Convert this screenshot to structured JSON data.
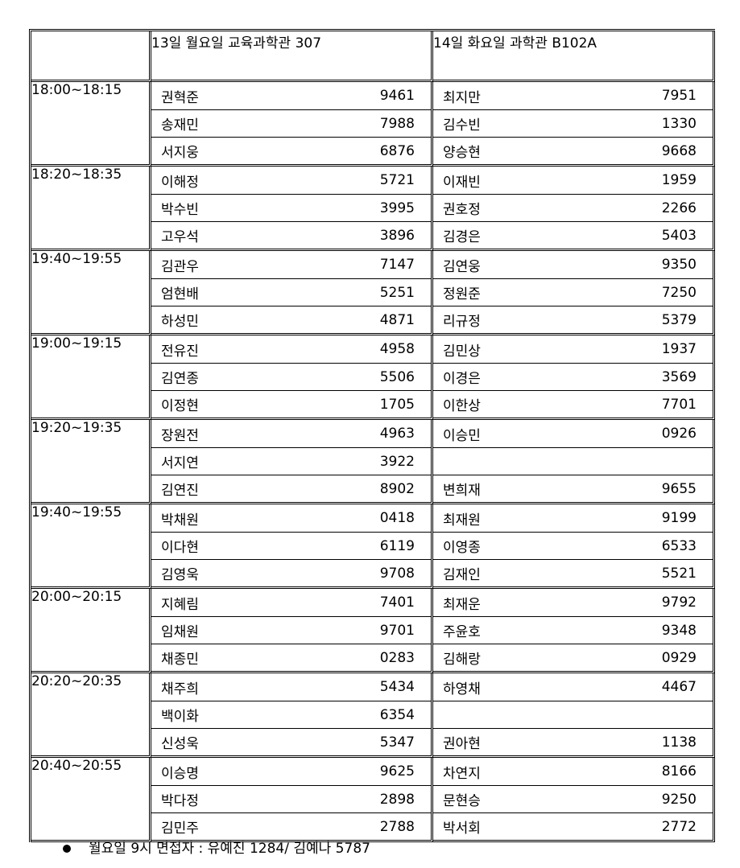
{
  "header": {
    "col1": "13일 월요일 교육과학관 307",
    "col2": "14일 화요일 과학관 B102A"
  },
  "blocks": [
    {
      "time": "18:00~18:15",
      "mon": [
        {
          "name": "권혁준",
          "num": "9461"
        },
        {
          "name": "송재민",
          "num": "7988"
        },
        {
          "name": "서지웅",
          "num": "6876"
        }
      ],
      "tue": [
        {
          "name": "최지만",
          "num": "7951"
        },
        {
          "name": "김수빈",
          "num": "1330"
        },
        {
          "name": "양승현",
          "num": "9668"
        }
      ]
    },
    {
      "time": "18:20~18:35",
      "mon": [
        {
          "name": "이해정",
          "num": "5721"
        },
        {
          "name": "박수빈",
          "num": "3995"
        },
        {
          "name": "고우석",
          "num": "3896"
        }
      ],
      "tue": [
        {
          "name": "이재빈",
          "num": "1959"
        },
        {
          "name": "권호정",
          "num": "2266"
        },
        {
          "name": "김경은",
          "num": "5403"
        }
      ]
    },
    {
      "time": "19:40~19:55",
      "mon": [
        {
          "name": "김관우",
          "num": "7147"
        },
        {
          "name": "엄현배",
          "num": "5251"
        },
        {
          "name": "하성민",
          "num": "4871"
        }
      ],
      "tue": [
        {
          "name": "김연웅",
          "num": "9350"
        },
        {
          "name": "정원준",
          "num": "7250"
        },
        {
          "name": "리규정",
          "num": "5379"
        }
      ]
    },
    {
      "time": "19:00~19:15",
      "mon": [
        {
          "name": "전유진",
          "num": "4958"
        },
        {
          "name": "김연종",
          "num": "5506"
        },
        {
          "name": "이정현",
          "num": "1705"
        }
      ],
      "tue": [
        {
          "name": "김민상",
          "num": "1937"
        },
        {
          "name": "이경은",
          "num": "3569"
        },
        {
          "name": "이한상",
          "num": "7701"
        }
      ]
    },
    {
      "time": "19:20~19:35",
      "mon": [
        {
          "name": "장원전",
          "num": "4963"
        },
        {
          "name": "서지연",
          "num": "3922"
        },
        {
          "name": "김연진",
          "num": "8902"
        }
      ],
      "tue": [
        {
          "name": "이승민",
          "num": "0926"
        },
        {
          "name": "",
          "num": ""
        },
        {
          "name": "변희재",
          "num": "9655"
        }
      ]
    },
    {
      "time": "19:40~19:55",
      "mon": [
        {
          "name": "박채원",
          "num": "0418"
        },
        {
          "name": "이다현",
          "num": "6119"
        },
        {
          "name": "김영욱",
          "num": "9708"
        }
      ],
      "tue": [
        {
          "name": "최재원",
          "num": "9199"
        },
        {
          "name": "이영종",
          "num": "6533"
        },
        {
          "name": "김재인",
          "num": "5521"
        }
      ]
    },
    {
      "time": "20:00~20:15",
      "mon": [
        {
          "name": "지혜림",
          "num": "7401"
        },
        {
          "name": "임채원",
          "num": "9701"
        },
        {
          "name": "채종민",
          "num": "0283"
        }
      ],
      "tue": [
        {
          "name": "최재운",
          "num": "9792"
        },
        {
          "name": "주윤호",
          "num": "9348"
        },
        {
          "name": "김해랑",
          "num": "0929"
        }
      ]
    },
    {
      "time": "20:20~20:35",
      "mon": [
        {
          "name": "채주희",
          "num": "5434"
        },
        {
          "name": "백이화",
          "num": "6354"
        },
        {
          "name": "신성욱",
          "num": "5347"
        }
      ],
      "tue": [
        {
          "name": "하영채",
          "num": "4467"
        },
        {
          "name": "",
          "num": ""
        },
        {
          "name": "권아현",
          "num": "1138"
        }
      ]
    },
    {
      "time": "20:40~20:55",
      "mon": [
        {
          "name": "이승명",
          "num": "9625"
        },
        {
          "name": "박다정",
          "num": "2898"
        },
        {
          "name": "김민주",
          "num": "2788"
        }
      ],
      "tue": [
        {
          "name": "차연지",
          "num": "8166"
        },
        {
          "name": "문현승",
          "num": "9250"
        },
        {
          "name": "박서회",
          "num": "2772"
        }
      ]
    }
  ],
  "note": "월요일 9시 면접자 : 유예진 1284/ 김예나 5787"
}
